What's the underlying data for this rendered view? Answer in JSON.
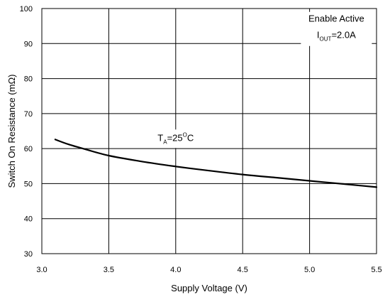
{
  "chart_data": {
    "type": "line",
    "xlabel": "Supply Voltage (V)",
    "ylabel": "Switch On Resistance (mΩ)",
    "xlim": [
      3.0,
      5.5
    ],
    "ylim": [
      30,
      100
    ],
    "x_ticks": [
      3.0,
      3.5,
      4.0,
      4.5,
      5.0,
      5.5
    ],
    "x_tick_labels": [
      "3.0",
      "3.5",
      "4.0",
      "4.5",
      "5.0",
      "5.5"
    ],
    "y_ticks": [
      30,
      40,
      50,
      60,
      70,
      80,
      90,
      100
    ],
    "y_tick_labels": [
      "30",
      "40",
      "50",
      "60",
      "70",
      "80",
      "90",
      "100"
    ],
    "grid": true,
    "series": [
      {
        "x": [
          3.1,
          3.2,
          3.3,
          3.5,
          3.75,
          4.0,
          4.25,
          4.5,
          4.75,
          5.0,
          5.25,
          5.5
        ],
        "values": [
          62.6,
          61.2,
          60.1,
          58.0,
          56.3,
          54.9,
          53.7,
          52.6,
          51.7,
          50.8,
          49.9,
          49.0
        ]
      }
    ],
    "annotations": {
      "temp": {
        "main": "T",
        "sub": "A",
        "eq": "=25",
        "sup": "O",
        "unit": "C",
        "x": 4.0,
        "y": 62.2
      },
      "cond1": {
        "text": "Enable Active",
        "x": 5.2,
        "y": 96.2
      },
      "cond2": {
        "main": "I",
        "sub": "OUT",
        "rest": "=2.0A",
        "x": 5.2,
        "y": 91.6
      }
    }
  }
}
